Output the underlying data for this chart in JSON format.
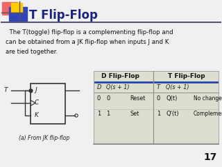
{
  "slide_number": "17",
  "title": "T Flip-Flop",
  "title_color": "#1a237e",
  "body_text": "  The T(toggle) flip-flop is a complementing flip-flop and\ncan be obtained from a JK flip-flop when inputs J and K\nare tied together.",
  "caption": "(a) From JK flip-flop",
  "bg_color": "#f0f0f0",
  "table_header_left": "D Flip-Flop",
  "table_header_right": "T Flip-Flop",
  "table_rows": [
    [
      "0",
      "0",
      "Reset",
      "0",
      "Q(t)",
      "No change"
    ],
    [
      "1",
      "1",
      "Set",
      "1",
      "Q'(t)",
      "Complement"
    ]
  ],
  "table_bg": "#ddddd0"
}
